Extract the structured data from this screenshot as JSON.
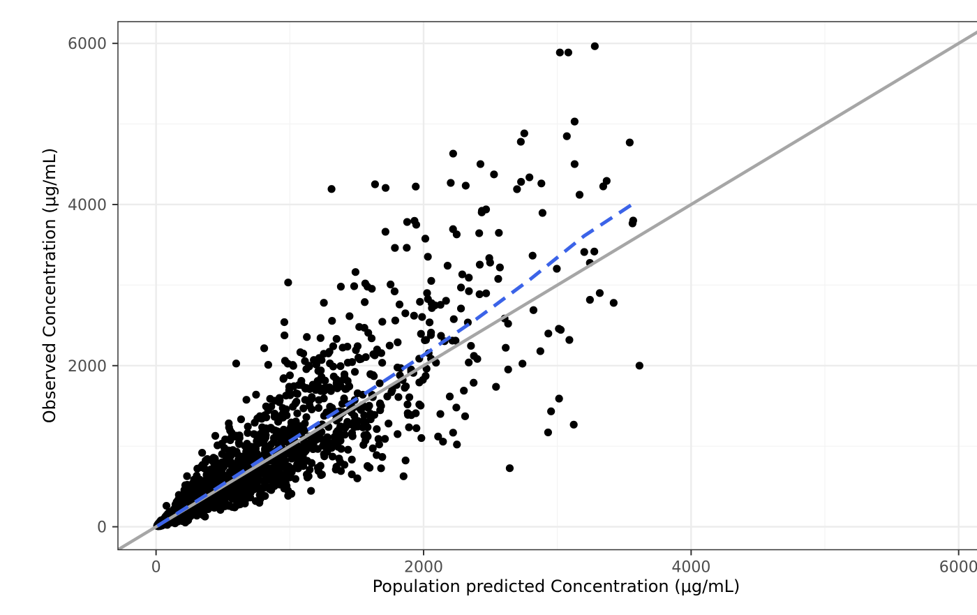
{
  "chart_data": {
    "type": "scatter",
    "title": "",
    "xlabel": "Population predicted Concentration (μg/mL)",
    "ylabel": "Observed Concentration (μg/mL)",
    "xlim": [
      -285,
      6265
    ],
    "ylim": [
      -285,
      6270
    ],
    "x_ticks": {
      "values": [
        0,
        2000,
        4000,
        6000
      ],
      "labels": [
        "0",
        "2000",
        "4000",
        "6000"
      ]
    },
    "y_ticks": {
      "values": [
        0,
        2000,
        4000,
        6000
      ],
      "labels": [
        "0",
        "2000",
        "4000",
        "6000"
      ]
    },
    "x_minor_gridlines": [
      1000,
      3000,
      5000
    ],
    "y_minor_gridlines": [
      1000,
      3000,
      5000
    ],
    "grid": "on",
    "legend": "none",
    "identity_line": {
      "meaning": "y = x reference line",
      "from": [
        -285,
        -285
      ],
      "to": [
        6265,
        6265
      ]
    },
    "loess_line": {
      "meaning": "dashed loess trend of observed vs population predicted concentration",
      "points": [
        [
          10,
          10
        ],
        [
          400,
          420
        ],
        [
          800,
          850
        ],
        [
          1200,
          1275
        ],
        [
          1600,
          1695
        ],
        [
          2000,
          2130
        ],
        [
          2400,
          2585
        ],
        [
          2800,
          3075
        ],
        [
          3200,
          3610
        ],
        [
          3590,
          4035
        ]
      ]
    },
    "points": {
      "outliers": [
        [
          3280,
          5965
        ],
        [
          3019,
          5887
        ],
        [
          3082,
          5887
        ],
        [
          3129,
          5030
        ],
        [
          3071,
          4848
        ],
        [
          2753,
          4883
        ],
        [
          2727,
          4779
        ],
        [
          3541,
          4770
        ],
        [
          3129,
          4502
        ],
        [
          2221,
          4632
        ],
        [
          2425,
          4502
        ],
        [
          2315,
          4234
        ],
        [
          1637,
          4251
        ],
        [
          2436,
          3922
        ],
        [
          2467,
          3939
        ],
        [
          2889,
          3896
        ],
        [
          3166,
          4121
        ],
        [
          3343,
          4225
        ],
        [
          3567,
          3801
        ],
        [
          3562,
          3766
        ],
        [
          3317,
          2901
        ],
        [
          3421,
          2779
        ],
        [
          3614,
          2000
        ],
        [
          2644,
          727
        ],
        [
          1877,
          3783
        ],
        [
          1945,
          3749
        ],
        [
          2013,
          3576
        ],
        [
          1715,
          3662
        ],
        [
          1874,
          3463
        ],
        [
          1491,
          3162
        ],
        [
          1564,
          3020
        ]
      ],
      "cloud": {
        "description": "dense funnel-shaped cloud of ~1600 observations hugging the identity line from (0,0) to about (2700,3200); spread grows proportionally with concentration",
        "n": 1600,
        "seed": 20,
        "x_mix_p": 0.22,
        "x_exp_scale": 170,
        "x_gamma_scale": 450,
        "x_range": [
          8,
          3380
        ],
        "y_sigma_log": 0.38,
        "y_max": 4380
      }
    },
    "style": {
      "colors": {
        "background": "#FFFFFF",
        "panel_border": "#333333",
        "grid_major": "#ECECEC",
        "grid_minor": "#F4F4F4",
        "tick_mark": "#333333",
        "tick_label": "#4D4D4D",
        "axis_title": "#000000",
        "identity": "#A6A6A6",
        "loess": "#3B63E8",
        "point": "#000000"
      },
      "point_radius": 5.6,
      "identity_width": 4.5,
      "loess_width": 5,
      "loess_dash": "20 12",
      "tick_label_size": 22,
      "axis_title_size": 24
    }
  }
}
